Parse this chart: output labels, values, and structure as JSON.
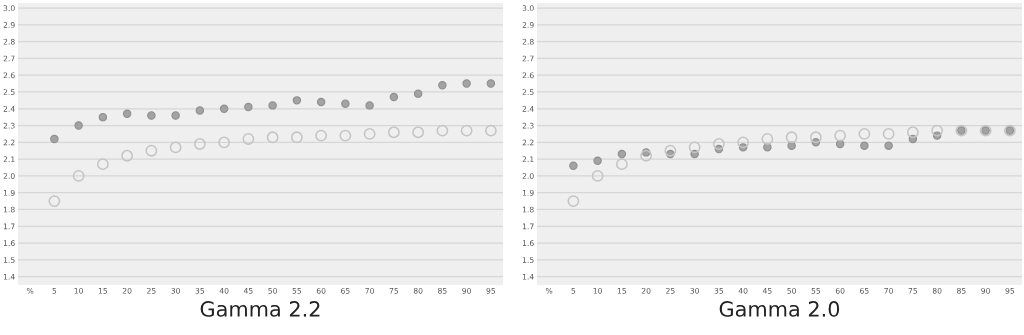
{
  "chart_data": [
    {
      "type": "scatter",
      "xlabel": "Gamma 2.2",
      "categories": [
        "%",
        "5",
        "10",
        "15",
        "20",
        "25",
        "30",
        "35",
        "40",
        "45",
        "50",
        "55",
        "60",
        "65",
        "70",
        "75",
        "80",
        "85",
        "90",
        "95"
      ],
      "series": [
        {
          "color": "#a3a3a3",
          "values": [
            null,
            2.22,
            2.3,
            2.35,
            2.37,
            2.36,
            2.36,
            2.39,
            2.4,
            2.41,
            2.42,
            2.45,
            2.44,
            2.43,
            2.42,
            2.47,
            2.49,
            2.54,
            2.55,
            2.55
          ]
        },
        {
          "color": "#c4c4c4",
          "values": [
            null,
            1.85,
            2.0,
            2.07,
            2.12,
            2.15,
            2.17,
            2.19,
            2.2,
            2.22,
            2.23,
            2.23,
            2.24,
            2.24,
            2.25,
            2.26,
            2.26,
            2.27,
            2.27,
            2.27
          ]
        }
      ],
      "ylim": [
        1.35,
        3.03
      ],
      "yticks": [
        {
          "value": 1.4,
          "label": "1.4"
        },
        {
          "value": 1.5,
          "label": "1.5"
        },
        {
          "value": 1.6,
          "label": "1.6"
        },
        {
          "value": 1.7,
          "label": "1.7"
        },
        {
          "value": 1.8,
          "label": "1.8"
        },
        {
          "value": 1.9,
          "label": "1.9"
        },
        {
          "value": 2,
          "label": "2.0"
        },
        {
          "value": 2.1,
          "label": "2.1"
        },
        {
          "value": 2.2,
          "label": "2.2"
        },
        {
          "value": 2.3,
          "label": "2.3"
        },
        {
          "value": 2.4,
          "label": "2.4"
        },
        {
          "value": 2.5,
          "label": "2.5"
        },
        {
          "value": 2.6,
          "label": "2.6"
        },
        {
          "value": 2.7,
          "label": "2.7"
        },
        {
          "value": 2.8,
          "label": "2.8"
        },
        {
          "value": 2.9,
          "label": "2.9"
        },
        {
          "value": 3,
          "label": "3.0"
        }
      ],
      "grid": "y",
      "marker": "circle"
    },
    {
      "type": "scatter",
      "xlabel": "Gamma 2.0",
      "categories": [
        "%",
        "5",
        "10",
        "15",
        "20",
        "25",
        "30",
        "35",
        "40",
        "45",
        "50",
        "55",
        "60",
        "65",
        "70",
        "75",
        "80",
        "85",
        "90",
        "95"
      ],
      "series": [
        {
          "color": "#a3a3a3",
          "values": [
            null,
            2.06,
            2.09,
            2.13,
            2.14,
            2.13,
            2.13,
            2.16,
            2.17,
            2.17,
            2.18,
            2.2,
            2.19,
            2.18,
            2.18,
            2.22,
            2.24,
            2.27,
            2.27,
            2.27
          ]
        },
        {
          "color": "#c4c4c4",
          "values": [
            null,
            1.85,
            2.0,
            2.07,
            2.12,
            2.15,
            2.17,
            2.19,
            2.2,
            2.22,
            2.23,
            2.23,
            2.24,
            2.25,
            2.25,
            2.26,
            2.27,
            2.27,
            2.27,
            2.27
          ]
        }
      ],
      "ylim": [
        1.35,
        3.03
      ],
      "yticks": [
        {
          "value": 1.4,
          "label": "1.4"
        },
        {
          "value": 1.5,
          "label": "1.5"
        },
        {
          "value": 1.6,
          "label": "1.6"
        },
        {
          "value": 1.7,
          "label": "1.7"
        },
        {
          "value": 1.8,
          "label": "1.8"
        },
        {
          "value": 1.9,
          "label": "1.9"
        },
        {
          "value": 2,
          "label": "2.0"
        },
        {
          "value": 2.1,
          "label": "2.1"
        },
        {
          "value": 2.2,
          "label": "2.2"
        },
        {
          "value": 2.3,
          "label": "2.3"
        },
        {
          "value": 2.4,
          "label": "2.4"
        },
        {
          "value": 2.5,
          "label": "2.5"
        },
        {
          "value": 2.6,
          "label": "2.6"
        },
        {
          "value": 2.7,
          "label": "2.7"
        },
        {
          "value": 2.8,
          "label": "2.8"
        },
        {
          "value": 2.9,
          "label": "2.9"
        },
        {
          "value": 3,
          "label": "3.0"
        }
      ],
      "grid": "y",
      "marker": "circle"
    }
  ]
}
